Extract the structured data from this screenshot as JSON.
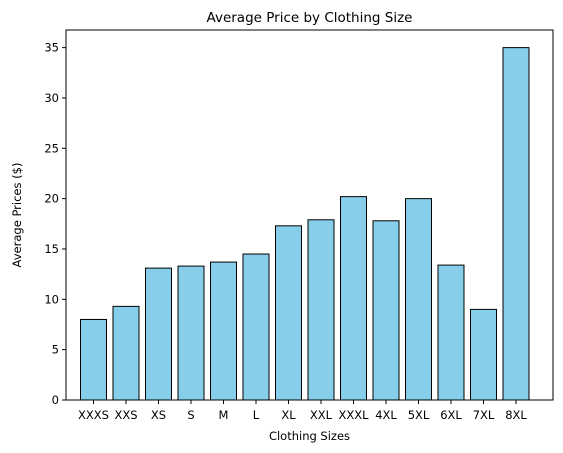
{
  "chart_data": {
    "type": "bar",
    "title": "Average Price by Clothing Size",
    "xlabel": "Clothing Sizes",
    "ylabel": "Average Prices ($)",
    "categories": [
      "XXXS",
      "XXS",
      "XS",
      "S",
      "M",
      "L",
      "XL",
      "XXL",
      "XXXL",
      "4XL",
      "5XL",
      "6XL",
      "7XL",
      "8XL"
    ],
    "values": [
      8.0,
      9.3,
      13.1,
      13.3,
      13.7,
      14.5,
      17.3,
      17.9,
      20.2,
      17.8,
      20.0,
      13.4,
      9.0,
      35.0
    ],
    "ylim": [
      0,
      36.75
    ],
    "yticks": [
      0,
      5,
      10,
      15,
      20,
      25,
      30,
      35
    ],
    "grid": false,
    "legend": "none",
    "colors": {
      "bar_fill": "#87CEEB",
      "bar_edge": "#000000",
      "axis": "#000000"
    }
  }
}
